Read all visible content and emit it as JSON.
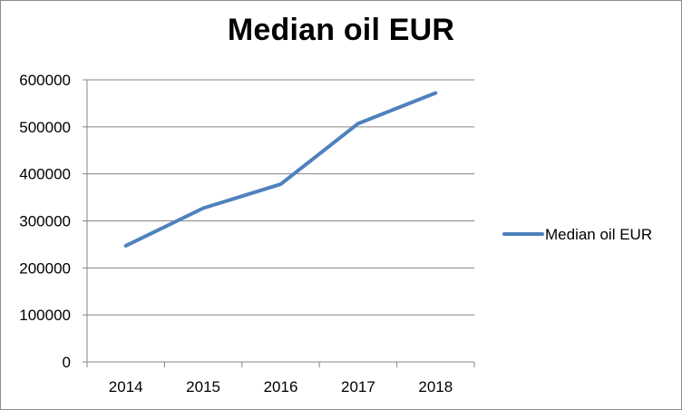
{
  "chart_data": {
    "type": "line",
    "title": "Median oil EUR",
    "xlabel": "",
    "ylabel": "",
    "categories": [
      "2014",
      "2015",
      "2016",
      "2017",
      "2018"
    ],
    "series": [
      {
        "name": "Median oil EUR",
        "values": [
          247000,
          327000,
          378000,
          507000,
          572000
        ],
        "color": "#4f81bd"
      }
    ],
    "ylim": [
      0,
      600000
    ],
    "yticks": [
      0,
      100000,
      200000,
      300000,
      400000,
      500000,
      600000
    ],
    "grid": true,
    "legend": "right"
  }
}
